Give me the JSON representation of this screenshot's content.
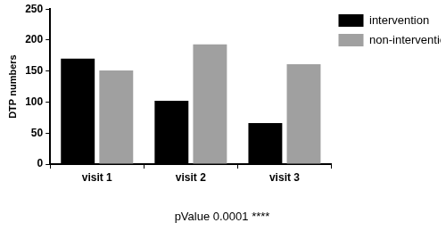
{
  "chart_data": {
    "type": "bar",
    "categories": [
      "visit 1",
      "visit 2",
      "visit 3"
    ],
    "series": [
      {
        "name": "intervention",
        "color": "#000000",
        "values": [
          170,
          102,
          66
        ]
      },
      {
        "name": "non-intervention",
        "color": "#a0a0a0",
        "values": [
          151,
          193,
          161
        ]
      }
    ],
    "ylabel": "DTP numbers",
    "annotations": [
      "pValue 0.0001 ****"
    ],
    "ylim": [
      0,
      250
    ],
    "yticks": [
      0,
      50,
      100,
      150,
      200,
      250
    ],
    "grid": false,
    "legend": "right"
  }
}
